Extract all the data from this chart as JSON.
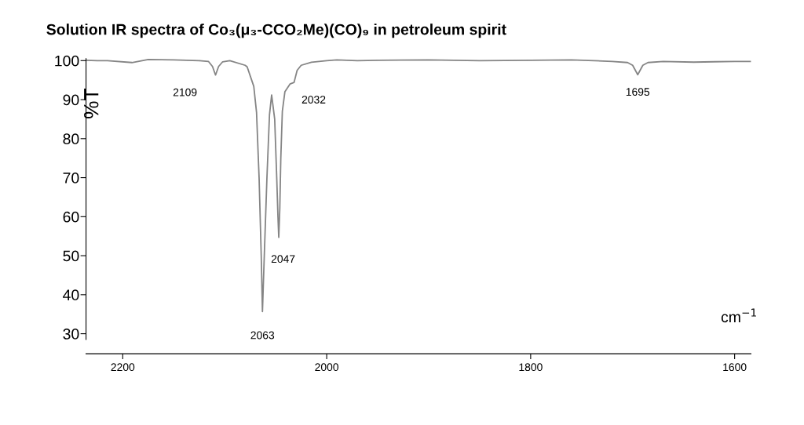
{
  "chart_data": {
    "type": "line",
    "title": "Solution IR spectra of Co₃(μ₃-CCO₂Me)(CO)₉ in petroleum spirit",
    "xlabel": "cm$^{−1}$",
    "ylabel": "%T",
    "x": [
      2236,
      2225,
      2215,
      2191,
      2175,
      2150,
      2125,
      2116,
      2112,
      2109,
      2106,
      2102,
      2095,
      2080,
      2078,
      2071.5,
      2068.8,
      2066.3,
      2064.2,
      2063,
      2061.2,
      2058.6,
      2056.1,
      2054,
      2051,
      2049,
      2047.8,
      2047,
      2046,
      2045,
      2043.5,
      2041,
      2036,
      2032,
      2029,
      2025,
      2015,
      2000,
      1990,
      1970,
      1950,
      1900,
      1850,
      1800,
      1760,
      1720,
      1705,
      1700,
      1695,
      1690,
      1685,
      1670,
      1640,
      1620,
      1600,
      1584
    ],
    "series": [
      {
        "color": "#858585",
        "values": [
          100.1,
          100.0,
          100.0,
          99.5,
          100.3,
          100.2,
          100.0,
          99.8,
          98.5,
          96.3,
          98.5,
          99.7,
          100.0,
          98.8,
          98.4,
          93.4,
          86.7,
          70,
          50,
          35.7,
          50,
          70,
          86.1,
          91.2,
          85,
          70,
          60,
          54.7,
          62,
          75,
          87,
          92,
          94,
          94.4,
          97.5,
          98.8,
          99.6,
          100.0,
          100.2,
          100.0,
          100.1,
          100.2,
          100.0,
          100.1,
          100.2,
          99.8,
          99.5,
          98.8,
          96.4,
          98.8,
          99.5,
          99.8,
          99.6,
          99.7,
          99.8,
          99.8
        ]
      }
    ],
    "xlim": [
      2236,
      1584
    ],
    "xticks": [
      2200,
      2000,
      1800,
      1600
    ],
    "ylim": [
      28.5,
      100.5
    ],
    "yticks": [
      30,
      40,
      50,
      60,
      70,
      80,
      90,
      100
    ],
    "grid": false,
    "legend": false,
    "marker": "none",
    "line_style": "solid",
    "annotations": [
      {
        "text": "2109",
        "x": 2109,
        "y": 96.3
      },
      {
        "text": "2063",
        "x": 2063,
        "y": 35.7
      },
      {
        "text": "2047",
        "x": 2047,
        "y": 54.7
      },
      {
        "text": "2032",
        "x": 2032,
        "y": 94.4
      },
      {
        "text": "1695",
        "x": 1695,
        "y": 96.4
      }
    ]
  }
}
